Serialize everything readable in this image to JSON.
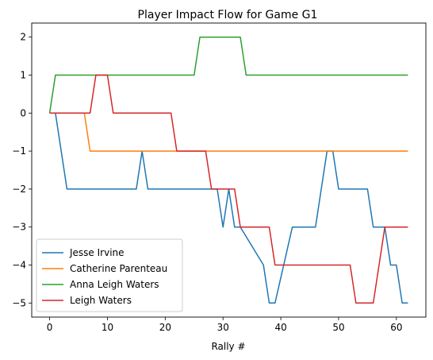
{
  "chart_data": {
    "type": "line",
    "title": "Player Impact Flow for Game G1",
    "xlabel": "Rally #",
    "ylabel": "",
    "xlim": [
      -3.1,
      65.1
    ],
    "ylim": [
      -5.37,
      2.37
    ],
    "xticks": [
      0,
      10,
      20,
      30,
      40,
      50,
      60
    ],
    "yticks": [
      2,
      1,
      0,
      -1,
      -2,
      -3,
      -4,
      -5
    ],
    "grid": false,
    "legend_position": "lower-left",
    "series": [
      {
        "name": "Jesse Irvine",
        "color": "#1f77b4",
        "x": [
          0,
          1,
          3,
          15,
          16,
          17,
          29,
          30,
          31,
          32,
          33,
          37,
          38,
          39,
          42,
          46,
          48,
          49,
          50,
          55,
          56,
          58,
          59,
          60,
          61,
          62
        ],
        "y": [
          0,
          0,
          -2,
          -2,
          -1,
          -2,
          -2,
          -3,
          -2,
          -3,
          -3,
          -4,
          -5,
          -5,
          -3,
          -3,
          -1,
          -1,
          -2,
          -2,
          -3,
          -3,
          -4,
          -4,
          -5,
          -5
        ]
      },
      {
        "name": "Catherine Parenteau",
        "color": "#ff7f0e",
        "x": [
          0,
          6,
          7,
          62
        ],
        "y": [
          0,
          0,
          -1,
          -1
        ]
      },
      {
        "name": "Anna Leigh Waters",
        "color": "#2ca02c",
        "x": [
          0,
          1,
          25,
          26,
          33,
          34,
          62
        ],
        "y": [
          0,
          1,
          1,
          2,
          2,
          1,
          1
        ]
      },
      {
        "name": "Leigh Waters",
        "color": "#d62728",
        "x": [
          0,
          7,
          8,
          10,
          11,
          21,
          22,
          27,
          28,
          32,
          33,
          38,
          39,
          52,
          53,
          56,
          58,
          62
        ],
        "y": [
          0,
          0,
          1,
          1,
          0,
          0,
          -1,
          -1,
          -2,
          -2,
          -3,
          -3,
          -4,
          -4,
          -5,
          -5,
          -3,
          -3
        ]
      }
    ]
  }
}
